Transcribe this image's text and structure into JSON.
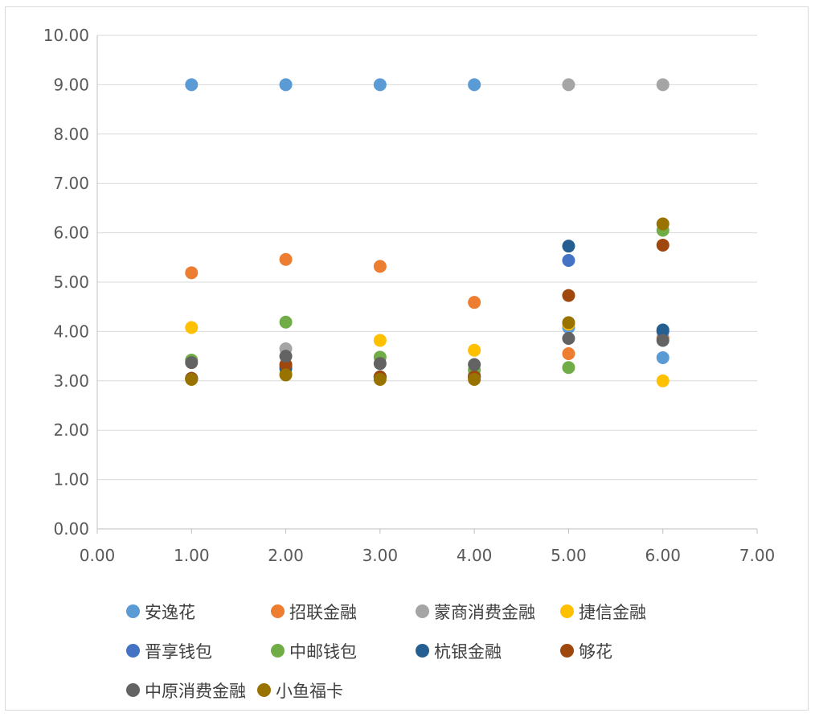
{
  "chart_data": {
    "type": "scatter",
    "title": "",
    "xlabel": "",
    "ylabel": "",
    "xlim": [
      0,
      7
    ],
    "ylim": [
      0,
      10
    ],
    "x_ticks": [
      "0.00",
      "1.00",
      "2.00",
      "3.00",
      "4.00",
      "5.00",
      "6.00",
      "7.00"
    ],
    "y_ticks": [
      "0.00",
      "1.00",
      "2.00",
      "3.00",
      "4.00",
      "5.00",
      "6.00",
      "7.00",
      "8.00",
      "9.00",
      "10.00"
    ],
    "grid": "horizontal",
    "legend_position": "bottom",
    "series": [
      {
        "name": "安逸花",
        "color": "#5b9bd5",
        "points": [
          [
            1,
            9
          ],
          [
            2,
            9
          ],
          [
            3,
            9
          ],
          [
            4,
            9
          ],
          [
            5,
            4.08
          ],
          [
            6,
            3.47
          ]
        ]
      },
      {
        "name": "招联金融",
        "color": "#ed7d31",
        "points": [
          [
            1,
            5.19
          ],
          [
            2,
            5.46
          ],
          [
            3,
            5.32
          ],
          [
            4,
            4.59
          ],
          [
            5,
            3.55
          ],
          [
            6,
            3.87
          ]
        ]
      },
      {
        "name": "蒙商消费金融",
        "color": "#a5a5a5",
        "points": [
          [
            1,
            3.05
          ],
          [
            2,
            3.65
          ],
          [
            3,
            3.08
          ],
          [
            4,
            3.12
          ],
          [
            5,
            9
          ],
          [
            6,
            9
          ]
        ]
      },
      {
        "name": "捷信金融",
        "color": "#ffc000",
        "points": [
          [
            1,
            4.08
          ],
          [
            2,
            3.15
          ],
          [
            3,
            3.82
          ],
          [
            4,
            3.62
          ],
          [
            5,
            4.15
          ],
          [
            6,
            3.0
          ]
        ]
      },
      {
        "name": "晋享钱包",
        "color": "#4472c4",
        "points": [
          [
            1,
            3.05
          ],
          [
            2,
            3.3
          ],
          [
            3,
            3.08
          ],
          [
            4,
            3.08
          ],
          [
            5,
            5.44
          ],
          [
            6,
            4.0
          ]
        ]
      },
      {
        "name": "中邮钱包",
        "color": "#70ad47",
        "points": [
          [
            1,
            3.42
          ],
          [
            2,
            4.19
          ],
          [
            3,
            3.48
          ],
          [
            4,
            3.22
          ],
          [
            5,
            3.27
          ],
          [
            6,
            6.05
          ]
        ]
      },
      {
        "name": "杭银金融",
        "color": "#255e91",
        "points": [
          [
            1,
            3.05
          ],
          [
            2,
            3.25
          ],
          [
            3,
            3.08
          ],
          [
            4,
            3.08
          ],
          [
            5,
            5.73
          ],
          [
            6,
            4.03
          ]
        ]
      },
      {
        "name": "够花",
        "color": "#9e480e",
        "points": [
          [
            1,
            3.05
          ],
          [
            2,
            3.33
          ],
          [
            3,
            3.08
          ],
          [
            4,
            3.08
          ],
          [
            5,
            4.73
          ],
          [
            6,
            5.75
          ]
        ]
      },
      {
        "name": "中原消费金融",
        "color": "#636363",
        "points": [
          [
            1,
            3.37
          ],
          [
            2,
            3.5
          ],
          [
            3,
            3.35
          ],
          [
            4,
            3.33
          ],
          [
            5,
            3.86
          ],
          [
            6,
            3.82
          ]
        ]
      },
      {
        "name": "小鱼福卡",
        "color": "#997300",
        "points": [
          [
            1,
            3.03
          ],
          [
            2,
            3.12
          ],
          [
            3,
            3.03
          ],
          [
            4,
            3.03
          ],
          [
            5,
            4.18
          ],
          [
            6,
            6.18
          ]
        ]
      }
    ]
  }
}
